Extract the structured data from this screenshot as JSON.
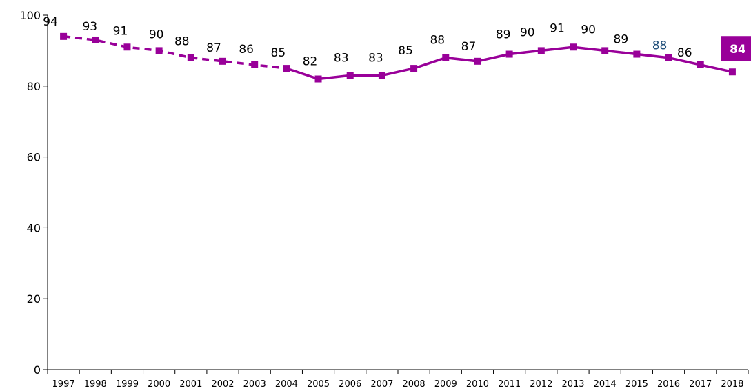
{
  "chart_data": {
    "type": "line",
    "title": "",
    "xlabel": "",
    "ylabel": "",
    "x": [
      "1997",
      "1998",
      "1999",
      "2000",
      "2001",
      "2002",
      "2003",
      "2004",
      "2005",
      "2006",
      "2007",
      "2008",
      "2009",
      "2010",
      "2011",
      "2012",
      "2013",
      "2014",
      "2015",
      "2016",
      "2017",
      "2018"
    ],
    "series": [
      {
        "values": [
          94,
          93,
          91,
          90,
          88,
          87,
          86,
          85,
          82,
          83,
          83,
          85,
          88,
          87,
          89,
          90,
          91,
          90,
          89,
          88,
          86,
          84
        ],
        "dashed_until": "2004",
        "color": "#990099"
      }
    ],
    "data_labels": [
      "94",
      "93",
      "91",
      "90",
      "88",
      "87",
      "86",
      "85",
      "82",
      "83",
      "83",
      "85",
      "88",
      "87",
      "89",
      "90",
      "91",
      "90",
      "89",
      "88",
      "86",
      "84"
    ],
    "highlight_label": {
      "x": "2018",
      "background": "#990099",
      "text_color": "#ffffff"
    },
    "alt_label": {
      "x": "2016",
      "color": "#1f4e79"
    },
    "ylim": [
      0,
      100
    ],
    "yticks": [
      "0",
      "20",
      "40",
      "60",
      "80",
      "100"
    ],
    "grid": false,
    "legend": "none"
  }
}
